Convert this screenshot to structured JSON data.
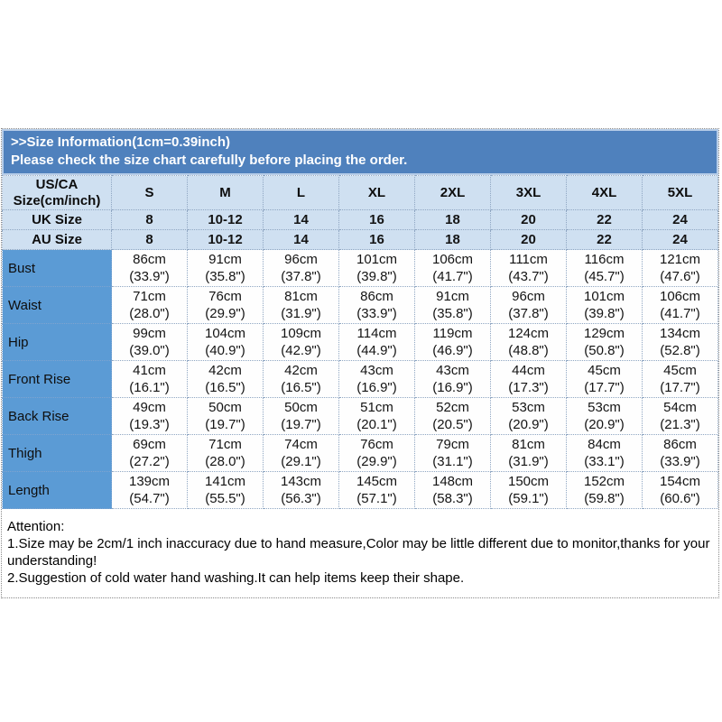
{
  "banner": {
    "title": ">>Size Information(1cm=0.39inch)",
    "subtitle": "Please check the size chart carefully before placing the order."
  },
  "table": {
    "corner": {
      "line1": "US/CA",
      "line2": "Size(cm/inch)"
    },
    "size_headers": [
      "S",
      "M",
      "L",
      "XL",
      "2XL",
      "3XL",
      "4XL",
      "5XL"
    ],
    "conversion_rows": [
      {
        "label": "UK Size",
        "values": [
          "8",
          "10-12",
          "14",
          "16",
          "18",
          "20",
          "22",
          "24"
        ]
      },
      {
        "label": "AU Size",
        "values": [
          "8",
          "10-12",
          "14",
          "16",
          "18",
          "20",
          "22",
          "24"
        ]
      }
    ],
    "measurement_rows": [
      {
        "label": "Bust",
        "cm": [
          "86cm",
          "91cm",
          "96cm",
          "101cm",
          "106cm",
          "111cm",
          "116cm",
          "121cm"
        ],
        "inch": [
          "(33.9\")",
          "(35.8\")",
          "(37.8\")",
          "(39.8\")",
          "(41.7\")",
          "(43.7\")",
          "(45.7\")",
          "(47.6\")"
        ]
      },
      {
        "label": "Waist",
        "cm": [
          "71cm",
          "76cm",
          "81cm",
          "86cm",
          "91cm",
          "96cm",
          "101cm",
          "106cm"
        ],
        "inch": [
          "(28.0\")",
          "(29.9\")",
          "(31.9\")",
          "(33.9\")",
          "(35.8\")",
          "(37.8\")",
          "(39.8\")",
          "(41.7\")"
        ]
      },
      {
        "label": "Hip",
        "cm": [
          "99cm",
          "104cm",
          "109cm",
          "114cm",
          "119cm",
          "124cm",
          "129cm",
          "134cm"
        ],
        "inch": [
          "(39.0\")",
          "(40.9\")",
          "(42.9\")",
          "(44.9\")",
          "(46.9\")",
          "(48.8\")",
          "(50.8\")",
          "(52.8\")"
        ]
      },
      {
        "label": "Front Rise",
        "cm": [
          "41cm",
          "42cm",
          "42cm",
          "43cm",
          "43cm",
          "44cm",
          "45cm",
          "45cm"
        ],
        "inch": [
          "(16.1\")",
          "(16.5\")",
          "(16.5\")",
          "(16.9\")",
          "(16.9\")",
          "(17.3\")",
          "(17.7\")",
          "(17.7\")"
        ]
      },
      {
        "label": "Back Rise",
        "cm": [
          "49cm",
          "50cm",
          "50cm",
          "51cm",
          "52cm",
          "53cm",
          "53cm",
          "54cm"
        ],
        "inch": [
          "(19.3\")",
          "(19.7\")",
          "(19.7\")",
          "(20.1\")",
          "(20.5\")",
          "(20.9\")",
          "(20.9\")",
          "(21.3\")"
        ]
      },
      {
        "label": "Thigh",
        "cm": [
          "69cm",
          "71cm",
          "74cm",
          "76cm",
          "79cm",
          "81cm",
          "84cm",
          "86cm"
        ],
        "inch": [
          "(27.2\")",
          "(28.0\")",
          "(29.1\")",
          "(29.9\")",
          "(31.1\")",
          "(31.9\")",
          "(33.1\")",
          "(33.9\")"
        ]
      },
      {
        "label": "Length",
        "cm": [
          "139cm",
          "141cm",
          "143cm",
          "145cm",
          "148cm",
          "150cm",
          "152cm",
          "154cm"
        ],
        "inch": [
          "(54.7\")",
          "(55.5\")",
          "(56.3\")",
          "(57.1\")",
          "(58.3\")",
          "(59.1\")",
          "(59.8\")",
          "(60.6\")"
        ]
      }
    ]
  },
  "attention": {
    "title": "Attention:",
    "note1": "1.Size may be 2cm/1 inch inaccuracy due to hand measure,Color may be little different due to monitor,thanks for your understanding!",
    "note2": "2.Suggestion of cold water hand washing.It can help items keep their shape."
  },
  "colors": {
    "banner_bg": "#4f81bd",
    "banner_text": "#ffffff",
    "header_row_bg": "#cfe0f1",
    "label_column_bg": "#5b9bd5"
  }
}
